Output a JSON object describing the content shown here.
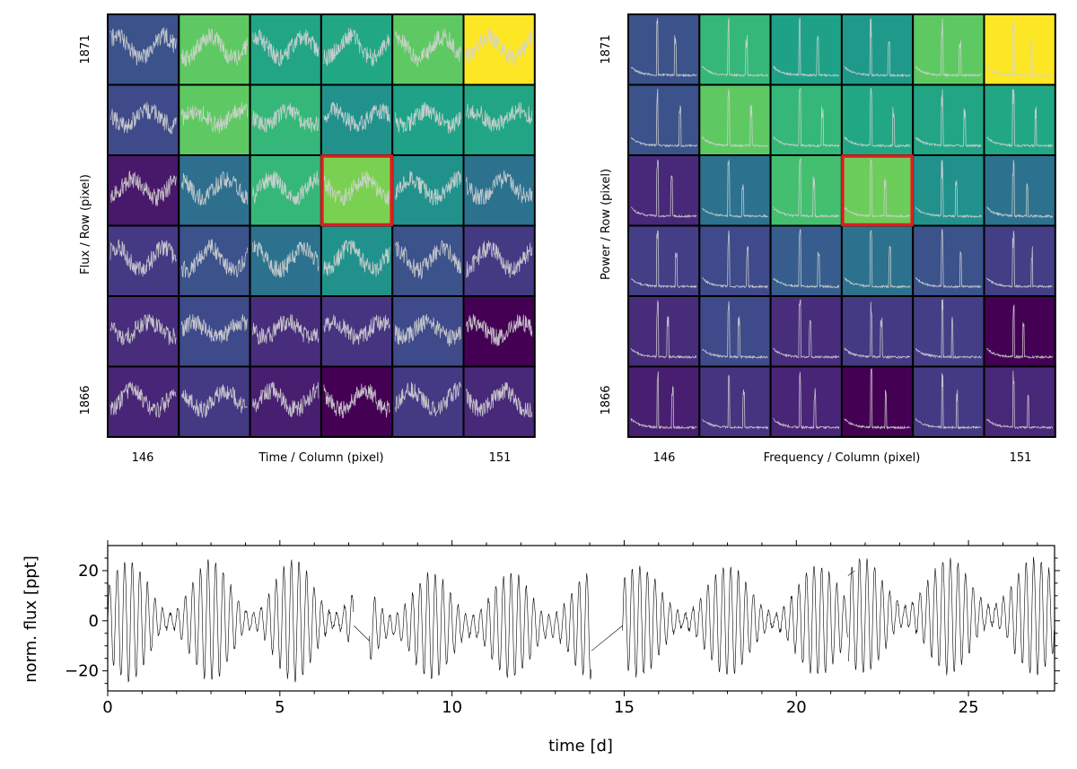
{
  "chart_data": [
    {
      "type": "heatmap",
      "title": "",
      "xlabel": "Time / Column (pixel)",
      "ylabel": "Flux / Row (pixel)",
      "column_tick_labels": [
        "146",
        "151"
      ],
      "row_tick_labels": [
        "1871",
        "1866"
      ],
      "columns": [
        146,
        147,
        148,
        149,
        150,
        151
      ],
      "rows": [
        1871,
        1870,
        1869,
        1868,
        1867,
        1866
      ],
      "cell_colors": [
        [
          "#3b528b",
          "#5ec962",
          "#21a585",
          "#22a785",
          "#5ec962",
          "#fde725"
        ],
        [
          "#3e4a89",
          "#5ec962",
          "#35b779",
          "#21918c",
          "#1fa287",
          "#21a585"
        ],
        [
          "#48186a",
          "#2e6f8e",
          "#35b779",
          "#7ad151",
          "#21918c",
          "#2c728e"
        ],
        [
          "#443983",
          "#3b528b",
          "#2c728e",
          "#21918c",
          "#3b528b",
          "#443a83"
        ],
        [
          "#472d7b",
          "#3e4a89",
          "#472d7b",
          "#463480",
          "#3e4a89",
          "#440154"
        ],
        [
          "#482576",
          "#443983",
          "#481f70",
          "#440154",
          "#443983",
          "#482878"
        ]
      ],
      "highlighted_cell": {
        "row": 1869,
        "column": 149,
        "color": "#e41a1c"
      },
      "trace_color": "#d3d3d3"
    },
    {
      "type": "heatmap",
      "title": "",
      "xlabel": "Frequency / Column (pixel)",
      "ylabel": "Power / Row (pixel)",
      "column_tick_labels": [
        "146",
        "151"
      ],
      "row_tick_labels": [
        "1871",
        "1866"
      ],
      "columns": [
        146,
        147,
        148,
        149,
        150,
        151
      ],
      "rows": [
        1871,
        1870,
        1869,
        1868,
        1867,
        1866
      ],
      "cell_colors": [
        [
          "#3b528b",
          "#35b779",
          "#1fa187",
          "#1f9a8a",
          "#5ec962",
          "#fde725"
        ],
        [
          "#3b528b",
          "#5ec962",
          "#35b779",
          "#22a785",
          "#21a585",
          "#22a785"
        ],
        [
          "#482878",
          "#2c728e",
          "#44bf70",
          "#6ccd5a",
          "#21918c",
          "#2c728e"
        ],
        [
          "#433e85",
          "#3e4a89",
          "#365d8d",
          "#2c728e",
          "#3b528b",
          "#433e85"
        ],
        [
          "#472c7a",
          "#3e4a89",
          "#472d7b",
          "#443983",
          "#433e85",
          "#440154"
        ],
        [
          "#481f70",
          "#463480",
          "#482576",
          "#440154",
          "#443983",
          "#482878"
        ]
      ],
      "highlighted_cell": {
        "row": 1869,
        "column": 149,
        "color": "#e41a1c"
      },
      "trace_color": "#d3d3d3"
    },
    {
      "type": "line",
      "title": "",
      "xlabel": "time [d]",
      "ylabel": "norm. flux [ppt]",
      "xlim": [
        0,
        27.5
      ],
      "ylim": [
        -28,
        30
      ],
      "xticks": [
        0,
        5,
        10,
        15,
        20,
        25
      ],
      "xtick_labels": [
        "0",
        "5",
        "10",
        "15",
        "20",
        "25"
      ],
      "yticks": [
        -20,
        0,
        20
      ],
      "ytick_labels": [
        "−20",
        "0",
        "20"
      ],
      "line_color": "#000000",
      "series": [
        {
          "name": "light curve",
          "segments": [
            {
              "t_start": 0.0,
              "t_end": 7.15,
              "beat_period_d": 2.4,
              "amplitude_ppt": [
                3,
                24
              ],
              "offset_ppt": 0
            },
            {
              "t_start": 7.6,
              "t_end": 14.05,
              "beat_period_d": 2.3,
              "amplitude_ppt": [
                4,
                21
              ],
              "offset_ppt": -2
            },
            {
              "t_start": 14.95,
              "t_end": 21.5,
              "beat_period_d": 2.6,
              "amplitude_ppt": [
                3,
                22
              ],
              "offset_ppt": 0
            },
            {
              "t_start": 21.5,
              "t_end": 27.5,
              "beat_period_d": 2.5,
              "amplitude_ppt": [
                4,
                23
              ],
              "offset_ppt": 2
            }
          ],
          "gap_lines": [
            {
              "x": [
                7.15,
                7.6
              ],
              "y": [
                -2,
                -8
              ]
            },
            {
              "x": [
                14.05,
                14.95
              ],
              "y": [
                -12,
                -2
              ]
            },
            {
              "x": [
                21.5,
                21.7
              ],
              "y": [
                18,
                20
              ]
            }
          ],
          "dominant_period_d": 0.22
        }
      ]
    }
  ]
}
